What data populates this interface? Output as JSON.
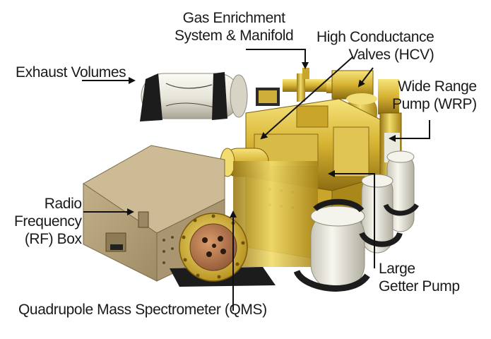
{
  "labels": {
    "gas_enrichment": [
      "Gas Enrichment",
      "System & Manifold"
    ],
    "hcv": [
      "High Conductance",
      "Valves (HCV)"
    ],
    "exhaust": [
      "Exhaust Volumes"
    ],
    "wrp": [
      "Wide Range",
      "Pump (WRP)"
    ],
    "rf_box": [
      "Radio",
      "Frequency",
      "(RF) Box"
    ],
    "getter": [
      "Large",
      "Getter Pump"
    ],
    "qms": [
      "Quadrupole Mass Spectrometer (QMS)"
    ]
  },
  "colors": {
    "brass": "#d9b436",
    "brass_dark": "#8a6a12",
    "brass_light": "#f4e27a",
    "tank": "#ebe9df",
    "tank_shade": "#b9b6a8",
    "rf_box": "#b3a078",
    "copper": "#b87a4e",
    "bracket": "#1c1c1c",
    "text": "#1a1a1a"
  }
}
